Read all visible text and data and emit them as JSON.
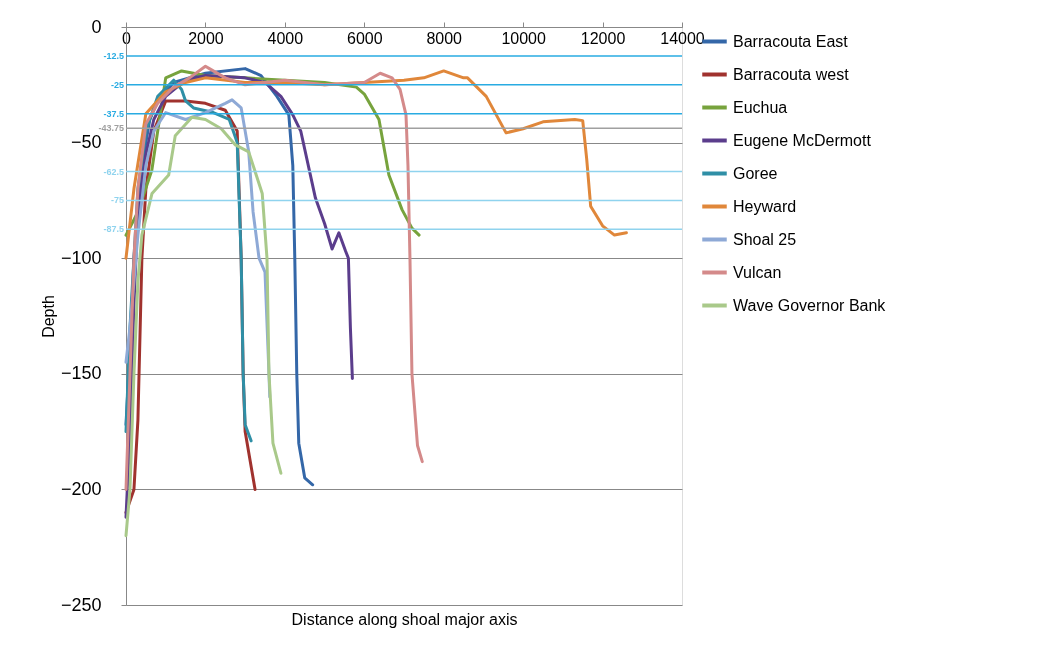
{
  "chart_data": {
    "type": "line",
    "xlabel": "Distance along shoal major axis",
    "ylabel": "Depth",
    "xlim": [
      0,
      14000
    ],
    "xticks": [
      0,
      2000,
      4000,
      6000,
      8000,
      10000,
      12000,
      14000
    ],
    "ylim": [
      -250,
      0
    ],
    "yticks": [
      0,
      -50,
      -100,
      -150,
      -200,
      -250
    ],
    "grid": "y",
    "legend": "right",
    "marker": "none",
    "line_style": "solid",
    "ref_lines": [
      {
        "axis": "y",
        "value": -12.5,
        "label": "-12.5",
        "color": "#29abe2"
      },
      {
        "axis": "y",
        "value": -25,
        "label": "-25",
        "color": "#29abe2"
      },
      {
        "axis": "y",
        "value": -37.5,
        "label": "-37.5",
        "color": "#29abe2"
      },
      {
        "axis": "y",
        "value": -43.75,
        "label": "-43.75",
        "color": "#a0a0a0"
      },
      {
        "axis": "y",
        "value": -62.5,
        "label": "-62.5",
        "color": "#8fd3ee"
      },
      {
        "axis": "y",
        "value": -75,
        "label": "-75",
        "color": "#8fd3ee"
      },
      {
        "axis": "y",
        "value": -87.5,
        "label": "-87.5",
        "color": "#8fd3ee"
      }
    ],
    "series": [
      {
        "name": "Barracouta East",
        "color": "#3467a8",
        "x": [
          0,
          100,
          200,
          400,
          600,
          800,
          1200,
          2000,
          3000,
          3400,
          3800,
          4100,
          4200,
          4250,
          4300,
          4350,
          4500,
          4700
        ],
        "values": [
          -172,
          -140,
          -100,
          -60,
          -40,
          -32,
          -24,
          -20,
          -18,
          -21,
          -30,
          -38,
          -60,
          -100,
          -150,
          -180,
          -195,
          -198
        ]
      },
      {
        "name": "Barracouta west",
        "color": "#a0322e",
        "x": [
          0,
          200,
          300,
          400,
          500,
          700,
          1000,
          1500,
          2000,
          2500,
          2800,
          2900,
          2950,
          3000,
          3100,
          3250
        ],
        "values": [
          -210,
          -200,
          -170,
          -100,
          -70,
          -45,
          -32,
          -32,
          -33,
          -36,
          -45,
          -100,
          -150,
          -175,
          -185,
          -200
        ]
      },
      {
        "name": "Euchua",
        "color": "#77a33d",
        "x": [
          0,
          300,
          650,
          1000,
          1400,
          2000,
          3000,
          4000,
          5000,
          5800,
          6000,
          6370,
          6620,
          6950,
          7200,
          7380
        ],
        "values": [
          -90,
          -80,
          -62,
          -22,
          -19,
          -21,
          -22,
          -23,
          -24,
          -26,
          -29,
          -40,
          -64,
          -79,
          -87,
          -90
        ]
      },
      {
        "name": "Eugene McDermott",
        "color": "#5b3d8c",
        "x": [
          0,
          100,
          200,
          300,
          500,
          700,
          1000,
          1500,
          2000,
          3000,
          3500,
          3900,
          4200,
          4400,
          4770,
          5000,
          5190,
          5360,
          5530,
          5600,
          5650,
          5700
        ],
        "values": [
          -212,
          -175,
          -120,
          -80,
          -55,
          -40,
          -30,
          -23,
          -21,
          -22,
          -24,
          -30,
          -38,
          -45,
          -74,
          -85,
          -96,
          -89,
          -97,
          -100,
          -130,
          -152
        ]
      },
      {
        "name": "Goree",
        "color": "#2f8fa6",
        "x": [
          0,
          100,
          300,
          500,
          800,
          1200,
          1400,
          1500,
          1700,
          2200,
          2600,
          2800,
          2900,
          2950,
          3000,
          3150
        ],
        "values": [
          -175,
          -130,
          -70,
          -45,
          -30,
          -23,
          -27,
          -32,
          -35,
          -37,
          -40,
          -50,
          -100,
          -150,
          -172,
          -179
        ]
      },
      {
        "name": "Heyward",
        "color": "#e0873a",
        "x": [
          0,
          200,
          500,
          1000,
          1500,
          2000,
          3000,
          4000,
          5000,
          6000,
          7000,
          7500,
          8000,
          8500,
          8600,
          9070,
          9570,
          10000,
          10500,
          11300,
          11500,
          11600,
          11700,
          12000,
          12300,
          12600
        ],
        "values": [
          -100,
          -70,
          -37.5,
          -28,
          -24,
          -22,
          -24,
          -24,
          -25,
          -24,
          -23,
          -22,
          -19,
          -22,
          -22,
          -30,
          -45.8,
          -44,
          -41,
          -40,
          -40.5,
          -57,
          -77.5,
          -86,
          -90,
          -89
        ]
      },
      {
        "name": "Shoal 25",
        "color": "#8ea9d6",
        "x": [
          0,
          100,
          300,
          500,
          700,
          1000,
          1500,
          2000,
          2500,
          2670,
          2900,
          3090,
          3200,
          3350,
          3500,
          3600,
          3620
        ],
        "values": [
          -145,
          -130,
          -90,
          -60,
          -45,
          -37,
          -40,
          -37,
          -33,
          -31.5,
          -35,
          -54,
          -80,
          -100,
          -106,
          -150,
          -160
        ]
      },
      {
        "name": "Vulcan",
        "color": "#d48a8a",
        "x": [
          0,
          100,
          200,
          300,
          500,
          800,
          1200,
          1600,
          2000,
          2100,
          2500,
          3000,
          4000,
          5000,
          6000,
          6400,
          6700,
          6900,
          7050,
          7100,
          7150,
          7200,
          7340,
          7460
        ],
        "values": [
          -200,
          -150,
          -100,
          -70,
          -42,
          -33,
          -26,
          -22,
          -17,
          -18,
          -22,
          -25,
          -23,
          -25,
          -24,
          -20,
          -22,
          -27,
          -38,
          -60,
          -100,
          -150,
          -181,
          -188
        ]
      },
      {
        "name": "Wave Governor Bank",
        "color": "#a9c98a",
        "x": [
          0,
          100,
          200,
          300,
          400,
          655,
          1075,
          1240,
          1660,
          2000,
          2400,
          2755,
          3090,
          3430,
          3550,
          3600,
          3700,
          3900
        ],
        "values": [
          -220,
          -200,
          -150,
          -110,
          -90,
          -72,
          -64,
          -47,
          -39,
          -40,
          -44,
          -51,
          -54,
          -72,
          -100,
          -150,
          -180,
          -193
        ]
      }
    ]
  }
}
